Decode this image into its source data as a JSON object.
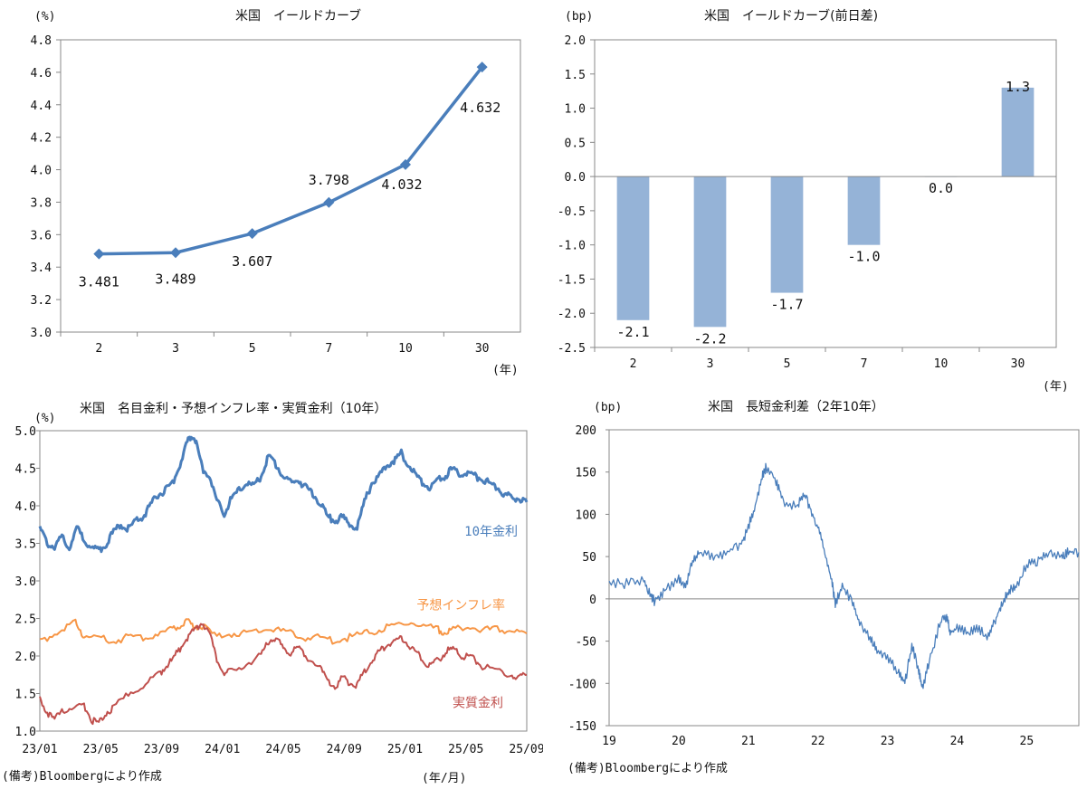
{
  "chart_data": [
    {
      "type": "line",
      "title": "米国　イールドカーブ",
      "ylabel": "(%)",
      "xlabel": "(年)",
      "categories": [
        "2",
        "3",
        "5",
        "7",
        "10",
        "30"
      ],
      "values": [
        3.481,
        3.489,
        3.607,
        3.798,
        4.032,
        4.632
      ],
      "data_labels": [
        "3.481",
        "3.489",
        "3.607",
        "3.798",
        "4.032",
        "4.632"
      ],
      "ylim": [
        3.0,
        4.8
      ],
      "yticks": [
        "3.0",
        "3.2",
        "3.4",
        "3.6",
        "3.8",
        "4.0",
        "4.2",
        "4.4",
        "4.6",
        "4.8"
      ],
      "color": "#4a7ebb",
      "grid": false
    },
    {
      "type": "bar",
      "title": "米国　イールドカーブ(前日差)",
      "ylabel": "(bp)",
      "xlabel": "(年)",
      "categories": [
        "2",
        "3",
        "5",
        "7",
        "10",
        "30"
      ],
      "values": [
        -2.1,
        -2.2,
        -1.7,
        -1.0,
        0.0,
        1.3
      ],
      "data_labels": [
        "-2.1",
        "-2.2",
        "-1.7",
        "-1.0",
        "0.0",
        "1.3"
      ],
      "ylim": [
        -2.5,
        2.0
      ],
      "yticks": [
        "-2.5",
        "-2.0",
        "-1.5",
        "-1.0",
        "-0.5",
        "0.0",
        "0.5",
        "1.0",
        "1.5",
        "2.0"
      ],
      "color": "#95b3d7",
      "grid": false
    },
    {
      "type": "line",
      "title": "米国　名目金利・予想インフレ率・実質金利（10年）",
      "ylabel": "(%)",
      "xlabel": "(年/月)",
      "ylim": [
        1.0,
        5.0
      ],
      "yticks": [
        "1.0",
        "1.5",
        "2.0",
        "2.5",
        "3.0",
        "3.5",
        "4.0",
        "4.5",
        "5.0"
      ],
      "xticks": [
        "23/01",
        "23/05",
        "23/09",
        "24/01",
        "24/05",
        "24/09",
        "25/01",
        "25/05",
        "25/09"
      ],
      "x_range_months": [
        0,
        33
      ],
      "series": [
        {
          "name": "10年金利",
          "color": "#4a7ebb",
          "points": [
            [
              0,
              3.7
            ],
            [
              0.5,
              3.5
            ],
            [
              1,
              3.45
            ],
            [
              1.5,
              3.6
            ],
            [
              2,
              3.45
            ],
            [
              2.5,
              3.7
            ],
            [
              3,
              3.55
            ],
            [
              3.5,
              3.45
            ],
            [
              4,
              3.4
            ],
            [
              4.5,
              3.5
            ],
            [
              5,
              3.65
            ],
            [
              5.5,
              3.75
            ],
            [
              6,
              3.7
            ],
            [
              6.5,
              3.8
            ],
            [
              7,
              3.85
            ],
            [
              7.5,
              4.0
            ],
            [
              8,
              4.15
            ],
            [
              8.5,
              4.2
            ],
            [
              9,
              4.3
            ],
            [
              9.5,
              4.55
            ],
            [
              10,
              4.85
            ],
            [
              10.3,
              4.95
            ],
            [
              10.6,
              4.85
            ],
            [
              11,
              4.5
            ],
            [
              11.5,
              4.4
            ],
            [
              12,
              4.05
            ],
            [
              12.5,
              3.9
            ],
            [
              13,
              4.1
            ],
            [
              13.5,
              4.2
            ],
            [
              14,
              4.3
            ],
            [
              14.5,
              4.25
            ],
            [
              15,
              4.4
            ],
            [
              15.5,
              4.65
            ],
            [
              16,
              4.55
            ],
            [
              16.5,
              4.4
            ],
            [
              17,
              4.3
            ],
            [
              17.5,
              4.35
            ],
            [
              18,
              4.25
            ],
            [
              18.5,
              4.15
            ],
            [
              19,
              4.05
            ],
            [
              19.5,
              3.85
            ],
            [
              20,
              3.8
            ],
            [
              20.5,
              3.85
            ],
            [
              21,
              3.75
            ],
            [
              21.5,
              3.7
            ],
            [
              22,
              4.05
            ],
            [
              22.5,
              4.3
            ],
            [
              23,
              4.4
            ],
            [
              23.5,
              4.55
            ],
            [
              24,
              4.6
            ],
            [
              24.5,
              4.7
            ],
            [
              25,
              4.55
            ],
            [
              25.5,
              4.4
            ],
            [
              26,
              4.3
            ],
            [
              26.5,
              4.25
            ],
            [
              27,
              4.35
            ],
            [
              27.5,
              4.4
            ],
            [
              28,
              4.5
            ],
            [
              28.5,
              4.4
            ],
            [
              29,
              4.45
            ],
            [
              29.5,
              4.4
            ],
            [
              30,
              4.35
            ],
            [
              30.5,
              4.3
            ],
            [
              31,
              4.25
            ],
            [
              31.5,
              4.15
            ],
            [
              32,
              4.1
            ],
            [
              32.5,
              4.1
            ],
            [
              33,
              4.05
            ]
          ]
        },
        {
          "name": "予想インフレ率",
          "color": "#f79646",
          "points": [
            [
              0,
              2.2
            ],
            [
              1,
              2.3
            ],
            [
              2,
              2.4
            ],
            [
              2.5,
              2.45
            ],
            [
              3,
              2.25
            ],
            [
              4,
              2.25
            ],
            [
              5,
              2.2
            ],
            [
              6,
              2.25
            ],
            [
              7,
              2.25
            ],
            [
              8,
              2.3
            ],
            [
              9,
              2.35
            ],
            [
              9.5,
              2.4
            ],
            [
              10,
              2.45
            ],
            [
              10.5,
              2.4
            ],
            [
              11,
              2.4
            ],
            [
              12,
              2.25
            ],
            [
              13,
              2.3
            ],
            [
              14,
              2.3
            ],
            [
              15,
              2.35
            ],
            [
              16,
              2.35
            ],
            [
              17,
              2.3
            ],
            [
              18,
              2.25
            ],
            [
              19,
              2.25
            ],
            [
              20,
              2.2
            ],
            [
              21,
              2.25
            ],
            [
              22,
              2.3
            ],
            [
              23,
              2.35
            ],
            [
              24,
              2.4
            ],
            [
              25,
              2.45
            ],
            [
              26,
              2.4
            ],
            [
              27,
              2.35
            ],
            [
              27.5,
              2.3
            ],
            [
              28,
              2.35
            ],
            [
              29,
              2.4
            ],
            [
              30,
              2.35
            ],
            [
              31,
              2.35
            ],
            [
              32,
              2.35
            ],
            [
              33,
              2.3
            ]
          ]
        },
        {
          "name": "実質金利",
          "color": "#c0504d",
          "points": [
            [
              0,
              1.45
            ],
            [
              0.5,
              1.25
            ],
            [
              1,
              1.15
            ],
            [
              1.5,
              1.3
            ],
            [
              2,
              1.25
            ],
            [
              3,
              1.35
            ],
            [
              3.5,
              1.15
            ],
            [
              4,
              1.1
            ],
            [
              4.5,
              1.25
            ],
            [
              5,
              1.3
            ],
            [
              6,
              1.5
            ],
            [
              7,
              1.6
            ],
            [
              8,
              1.75
            ],
            [
              8.5,
              1.85
            ],
            [
              9,
              1.95
            ],
            [
              9.5,
              2.1
            ],
            [
              10,
              2.25
            ],
            [
              10.5,
              2.35
            ],
            [
              11,
              2.45
            ],
            [
              11.5,
              2.3
            ],
            [
              12,
              1.95
            ],
            [
              12.5,
              1.75
            ],
            [
              13,
              1.8
            ],
            [
              14,
              1.9
            ],
            [
              15,
              2.0
            ],
            [
              15.5,
              2.2
            ],
            [
              16,
              2.25
            ],
            [
              16.5,
              2.1
            ],
            [
              17,
              2.05
            ],
            [
              17.5,
              2.1
            ],
            [
              18,
              2.0
            ],
            [
              19,
              1.85
            ],
            [
              19.5,
              1.65
            ],
            [
              20,
              1.6
            ],
            [
              20.5,
              1.7
            ],
            [
              21,
              1.65
            ],
            [
              21.5,
              1.6
            ],
            [
              22,
              1.8
            ],
            [
              22.5,
              1.95
            ],
            [
              23,
              2.05
            ],
            [
              23.5,
              2.15
            ],
            [
              24,
              2.2
            ],
            [
              24.5,
              2.25
            ],
            [
              25,
              2.15
            ],
            [
              25.5,
              2.05
            ],
            [
              26,
              1.95
            ],
            [
              26.5,
              1.85
            ],
            [
              27,
              1.95
            ],
            [
              27.5,
              2.05
            ],
            [
              28,
              2.1
            ],
            [
              28.5,
              2.0
            ],
            [
              29,
              2.0
            ],
            [
              29.5,
              1.95
            ],
            [
              30,
              1.85
            ],
            [
              31,
              1.8
            ],
            [
              32,
              1.75
            ],
            [
              32.5,
              1.7
            ],
            [
              33,
              1.75
            ]
          ]
        }
      ],
      "legend_labels": [
        "10年金利",
        "予想インフレ率",
        "実質金利"
      ],
      "grid": false
    },
    {
      "type": "line",
      "title": "米国　長短金利差（2年10年）",
      "ylabel": "(bp)",
      "ylim": [
        -150,
        200
      ],
      "yticks": [
        "-150",
        "-100",
        "-50",
        "0",
        "50",
        "100",
        "150",
        "200"
      ],
      "xticks": [
        "19",
        "20",
        "21",
        "22",
        "23",
        "24",
        "25"
      ],
      "x_range_years": [
        2019.0,
        2025.75
      ],
      "series": [
        {
          "name": "長短金利差",
          "color": "#4a7ebb",
          "points": [
            [
              2019.0,
              18
            ],
            [
              2019.25,
              18
            ],
            [
              2019.5,
              22
            ],
            [
              2019.6,
              5
            ],
            [
              2019.65,
              -3
            ],
            [
              2019.8,
              10
            ],
            [
              2020.0,
              25
            ],
            [
              2020.1,
              15
            ],
            [
              2020.2,
              45
            ],
            [
              2020.3,
              55
            ],
            [
              2020.5,
              50
            ],
            [
              2020.7,
              55
            ],
            [
              2020.9,
              65
            ],
            [
              2021.0,
              85
            ],
            [
              2021.1,
              110
            ],
            [
              2021.2,
              145
            ],
            [
              2021.25,
              155
            ],
            [
              2021.4,
              140
            ],
            [
              2021.5,
              115
            ],
            [
              2021.7,
              110
            ],
            [
              2021.8,
              125
            ],
            [
              2021.9,
              105
            ],
            [
              2022.0,
              85
            ],
            [
              2022.1,
              55
            ],
            [
              2022.2,
              20
            ],
            [
              2022.25,
              -5
            ],
            [
              2022.35,
              15
            ],
            [
              2022.5,
              -5
            ],
            [
              2022.6,
              -30
            ],
            [
              2022.75,
              -45
            ],
            [
              2022.85,
              -60
            ],
            [
              2023.0,
              -70
            ],
            [
              2023.15,
              -85
            ],
            [
              2023.25,
              -100
            ],
            [
              2023.35,
              -55
            ],
            [
              2023.45,
              -85
            ],
            [
              2023.5,
              -105
            ],
            [
              2023.6,
              -75
            ],
            [
              2023.75,
              -30
            ],
            [
              2023.85,
              -20
            ],
            [
              2023.9,
              -40
            ],
            [
              2024.0,
              -35
            ],
            [
              2024.15,
              -40
            ],
            [
              2024.3,
              -35
            ],
            [
              2024.45,
              -45
            ],
            [
              2024.55,
              -25
            ],
            [
              2024.65,
              -5
            ],
            [
              2024.75,
              10
            ],
            [
              2024.85,
              15
            ],
            [
              2025.0,
              40
            ],
            [
              2025.15,
              45
            ],
            [
              2025.3,
              55
            ],
            [
              2025.5,
              50
            ],
            [
              2025.6,
              55
            ],
            [
              2025.75,
              55
            ]
          ]
        }
      ],
      "grid": false
    }
  ],
  "notes": {
    "left": "(備考)Bloombergにより作成",
    "right": "(備考)Bloombergにより作成",
    "unit_left": "(年/月)"
  }
}
